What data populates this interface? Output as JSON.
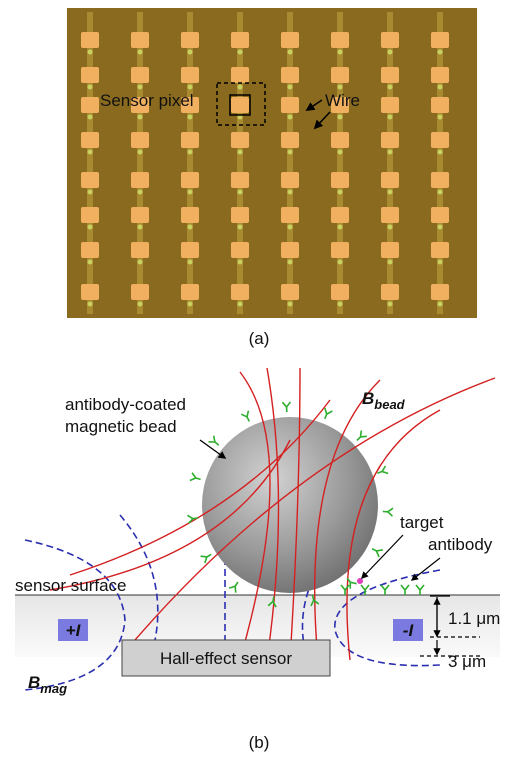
{
  "panel_a": {
    "labels": {
      "sensor_pixel": "Sensor pixel",
      "wire": "Wire"
    },
    "caption": "(a)"
  },
  "panel_b": {
    "bead_label": [
      "antibody-coated",
      "magnetic bead"
    ],
    "b_bead": {
      "symbol": "B",
      "subscript": "bead"
    },
    "target_label": [
      "target",
      "antibody"
    ],
    "surface_label": "sensor surface",
    "current_plus": "+I",
    "current_minus": "-I",
    "depth_1": "1.1 μm",
    "depth_2": "3 μm",
    "b_mag": {
      "symbol": "B",
      "subscript": "mag"
    },
    "sensor_label": "Hall-effect sensor",
    "caption": "(b)"
  }
}
